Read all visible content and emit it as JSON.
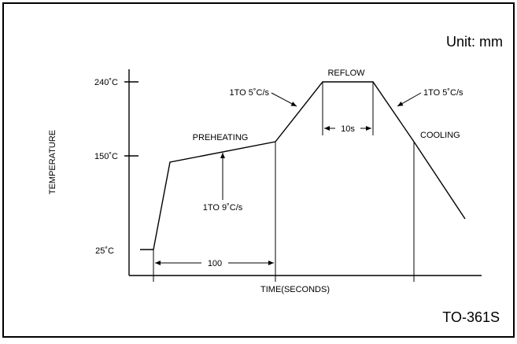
{
  "diagram": {
    "unit_label": "Unit: mm",
    "part_number": "TO-361S",
    "y_axis_label": "TEMPERATURE",
    "x_axis_label": "TIME(SECONDS)",
    "y_ticks": [
      "240˚C",
      "150˚C",
      "25˚C"
    ],
    "zones": {
      "preheating": "PREHEATING",
      "reflow": "REFLOW",
      "cooling": "COOLING"
    },
    "rates": {
      "preheat_rate": "1TO 9˚C/s",
      "ramp_up_rate": "1TO 5˚C/s",
      "ramp_down_rate": "1TO 5˚C/s"
    },
    "durations": {
      "preheat_time": "100",
      "reflow_time": "10s"
    }
  }
}
